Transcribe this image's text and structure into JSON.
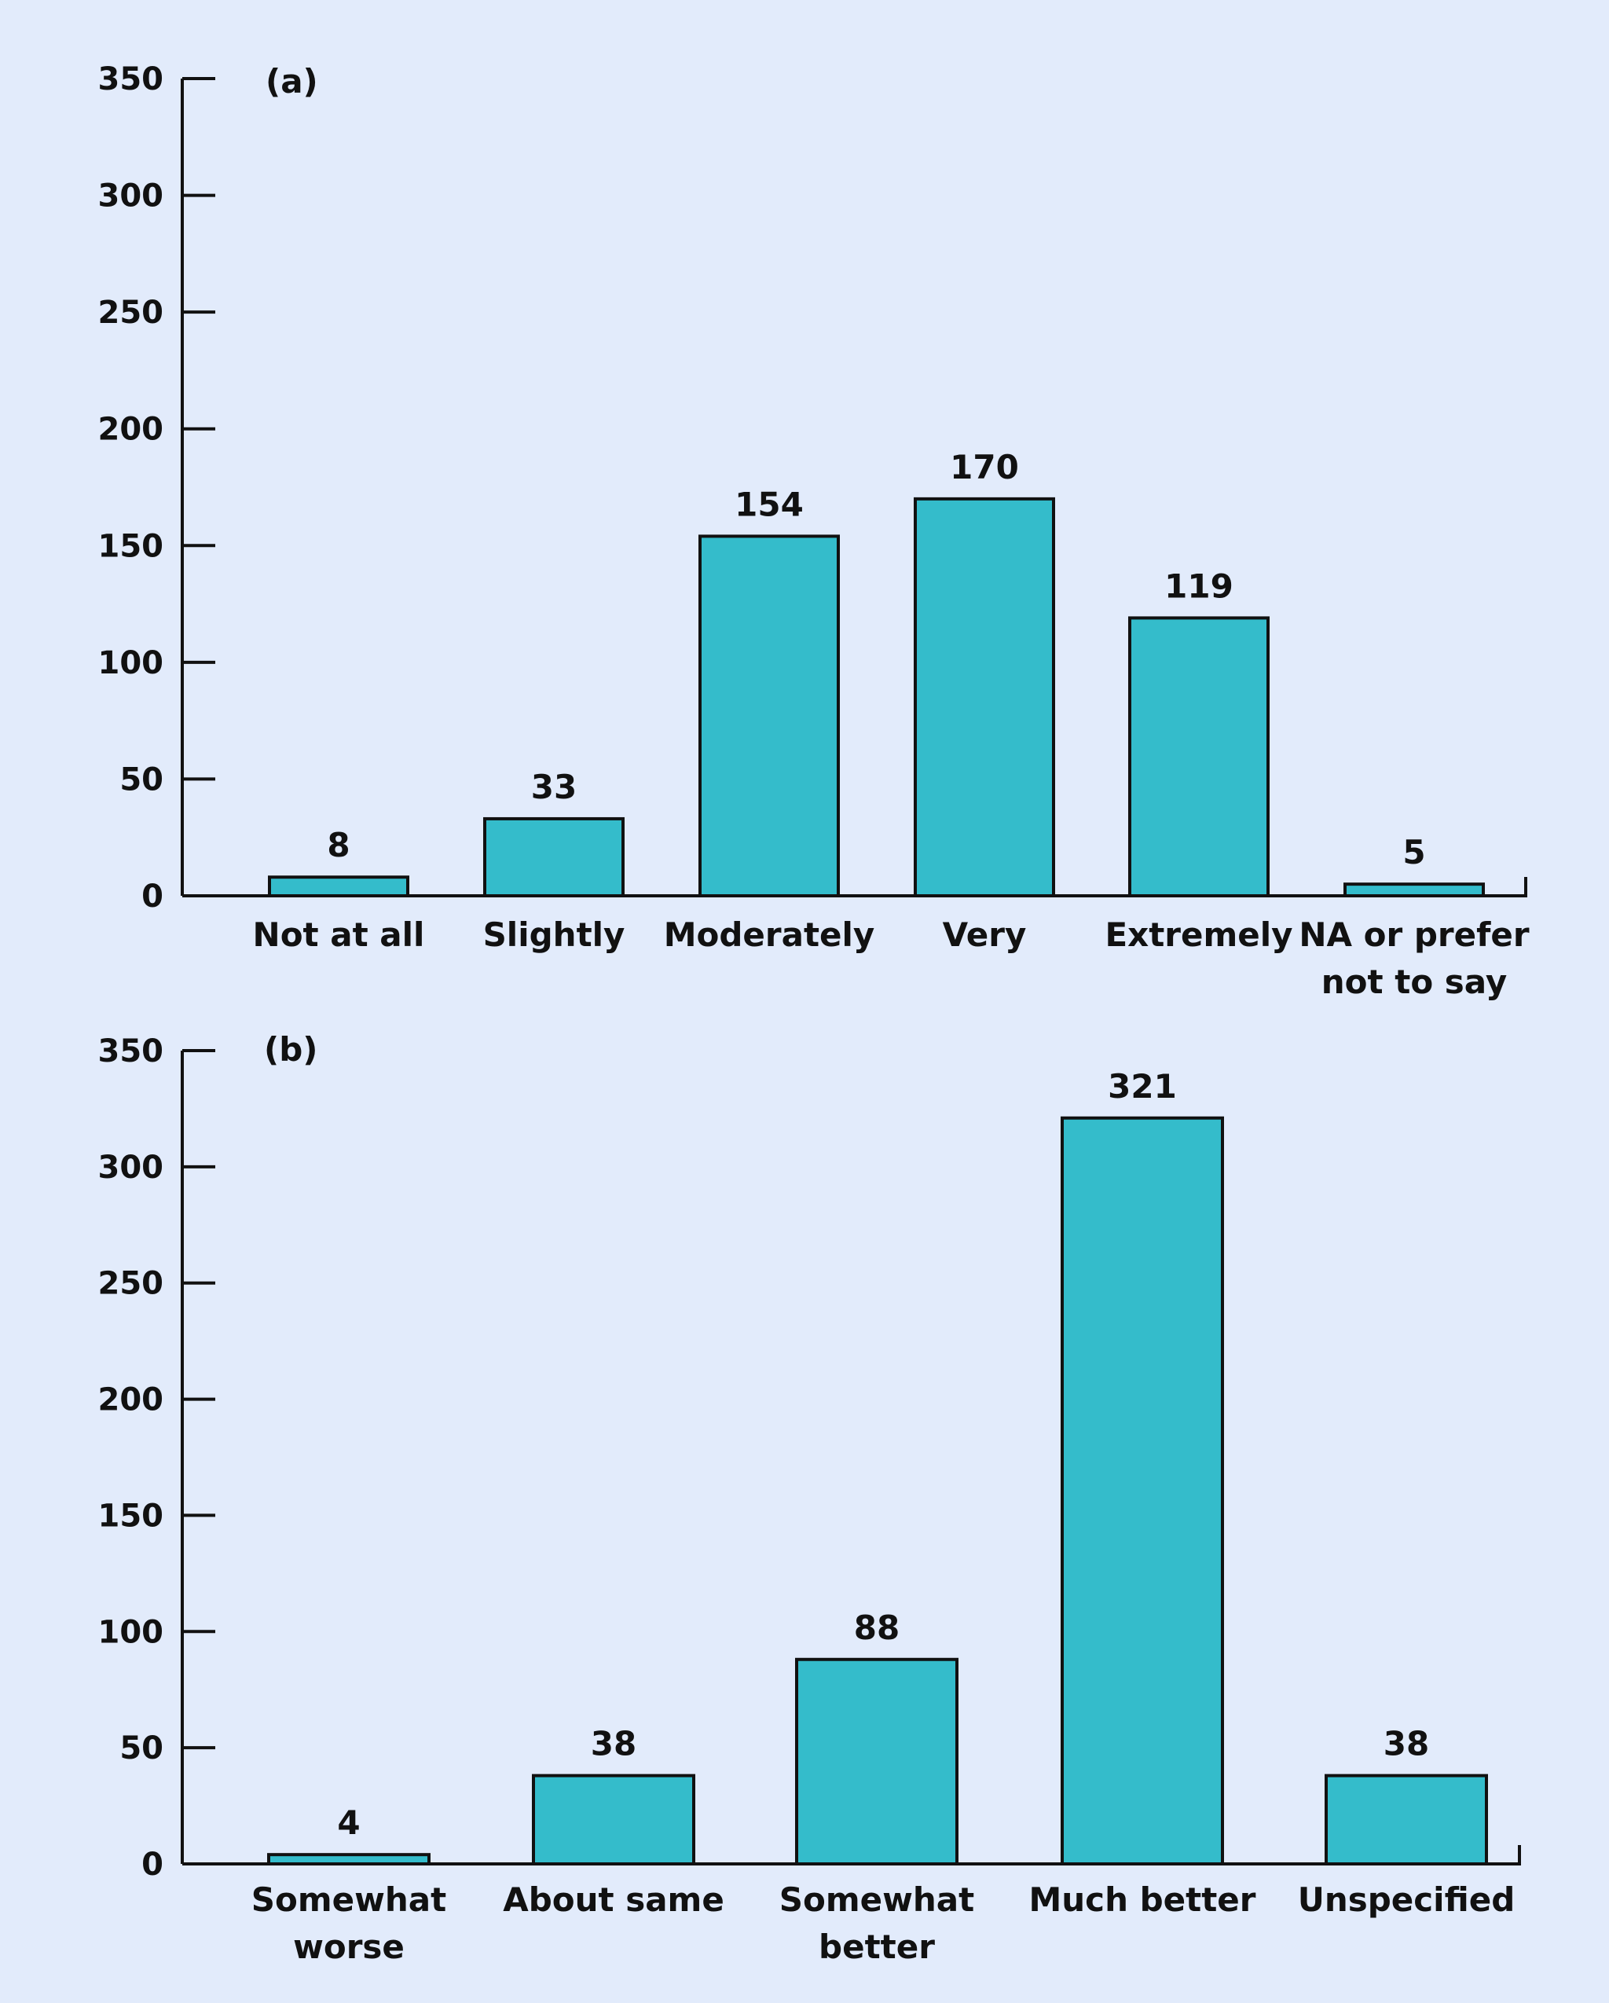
{
  "colors": {
    "background": "#e2ebfb",
    "bar_fill": "#34bccb",
    "axis": "#111111"
  },
  "chart_data": [
    {
      "type": "bar",
      "panel_label": "(a)",
      "categories": [
        "Not at all",
        "Slightly",
        "Moderately",
        "Very",
        "Extremely",
        "NA or prefer not to say"
      ],
      "values": [
        8,
        33,
        154,
        170,
        119,
        5
      ],
      "value_labels": [
        "8",
        "33",
        "154",
        "170",
        "119",
        "5"
      ],
      "ylim": [
        0,
        350
      ],
      "yticks": [
        0,
        50,
        100,
        150,
        200,
        250,
        300,
        350
      ],
      "title": "",
      "xlabel": "",
      "ylabel": "",
      "grid": false,
      "legend": "none"
    },
    {
      "type": "bar",
      "panel_label": "(b)",
      "categories": [
        "Somewhat worse",
        "About same",
        "Somewhat better",
        "Much better",
        "Unspecified"
      ],
      "values": [
        4,
        38,
        88,
        321,
        38
      ],
      "value_labels": [
        "4",
        "38",
        "88",
        "321",
        "38"
      ],
      "ylim": [
        0,
        350
      ],
      "yticks": [
        0,
        50,
        100,
        150,
        200,
        250,
        300,
        350
      ],
      "title": "",
      "xlabel": "",
      "ylabel": "",
      "grid": false,
      "legend": "none"
    }
  ]
}
